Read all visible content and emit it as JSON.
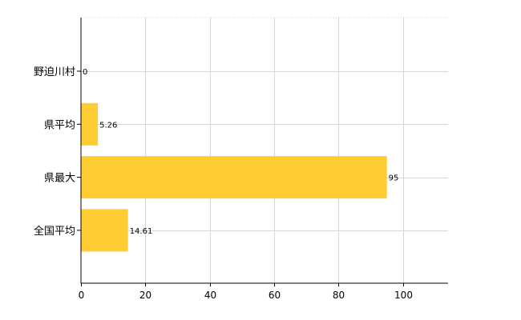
{
  "chart_data": {
    "type": "bar",
    "orientation": "horizontal",
    "categories": [
      "野迫川村",
      "県平均",
      "県最大",
      "全国平均"
    ],
    "values": [
      0,
      5.26,
      95,
      14.61
    ],
    "value_labels": [
      "0",
      "5.26",
      "95",
      "14.61"
    ],
    "title": "",
    "xlabel": "",
    "ylabel": "",
    "xlim": [
      0,
      114
    ],
    "xticks": [
      0,
      20,
      40,
      60,
      80,
      100
    ],
    "xtick_labels": [
      "0",
      "20",
      "40",
      "60",
      "80",
      "100"
    ],
    "grid": true,
    "legend": "none",
    "bar_color": "#ffcc33"
  }
}
